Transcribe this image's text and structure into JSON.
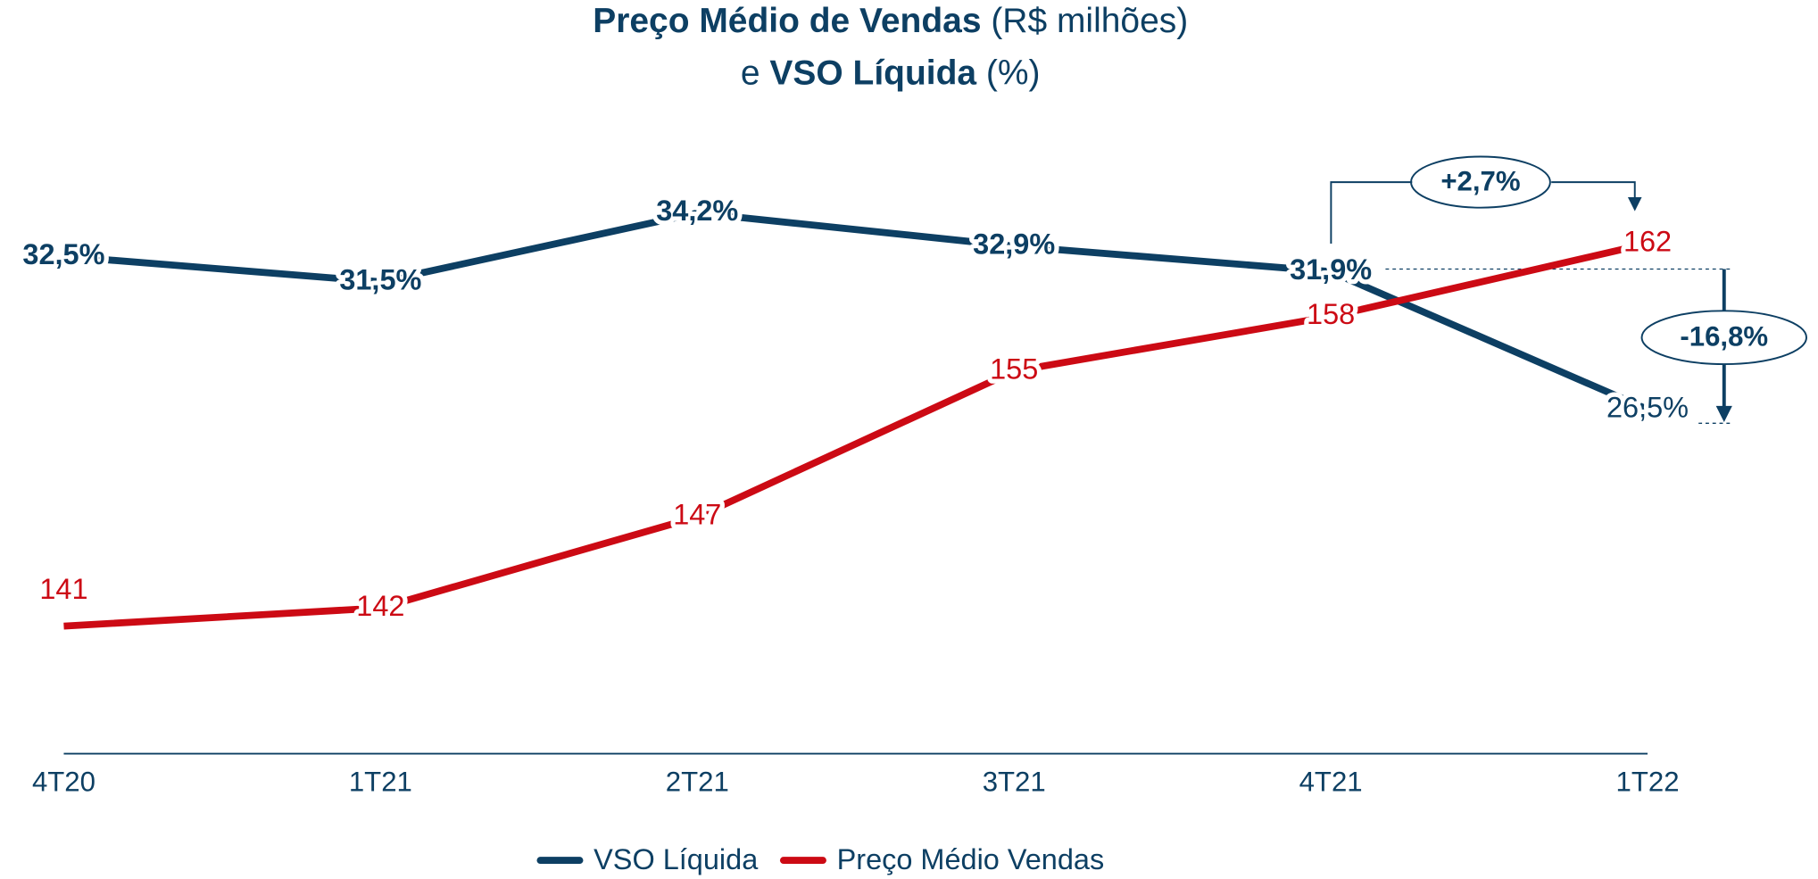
{
  "chart_data": {
    "type": "line",
    "title": [
      [
        "Preço Médio de Vendas",
        "(R$ milhões)"
      ],
      [
        "e",
        "VSO Líquida",
        "(%)"
      ]
    ],
    "categories": [
      "4T20",
      "1T21",
      "2T21",
      "3T21",
      "4T21",
      "1T22"
    ],
    "series": [
      {
        "name": "VSO Líquida",
        "color": "#0d3f63",
        "axis": "y2",
        "values": [
          32.5,
          31.5,
          34.2,
          32.9,
          31.9,
          26.5
        ],
        "value_labels": [
          "32,5%",
          "31,5%",
          "34,2%",
          "32,9%",
          "31,9%",
          "26,5%"
        ]
      },
      {
        "name": "Preço Médio Vendas",
        "color": "#cc0a14",
        "values": [
          141,
          142,
          147,
          155,
          158,
          162
        ]
      }
    ],
    "ylim": [
      134,
      169
    ],
    "y2lim": [
      13,
      38
    ],
    "annotations": [
      {
        "text": "+2,7%"
      },
      {
        "text": "-16,8%"
      }
    ]
  }
}
